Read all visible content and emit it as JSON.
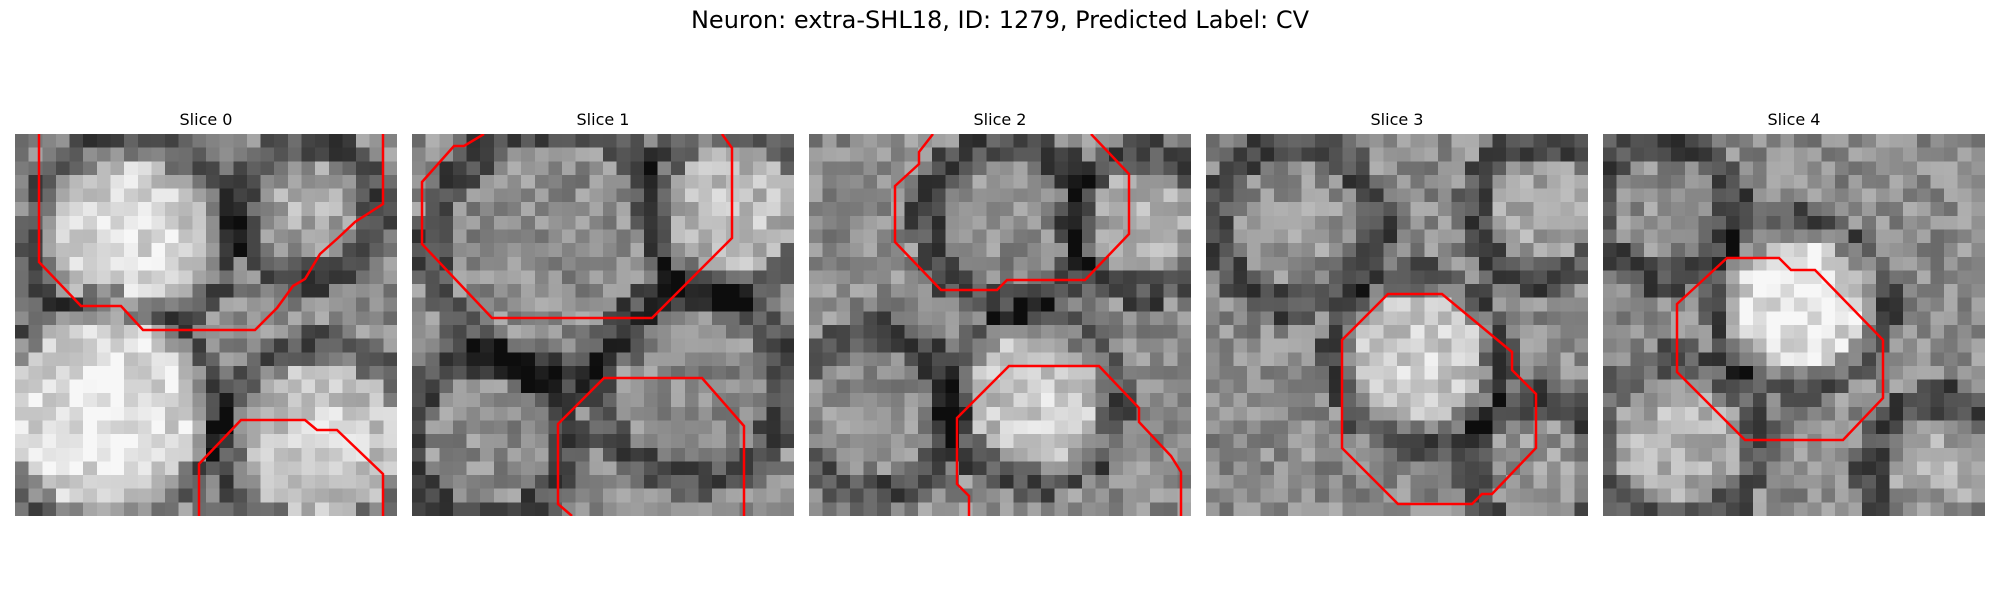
{
  "figure": {
    "title": "Neuron: extra-SHL18, ID: 1279, Predicted Label: CV",
    "colors": {
      "contour": "#ff0000",
      "background": "#ffffff"
    },
    "panels": [
      {
        "label": "Slice 0"
      },
      {
        "label": "Slice 1"
      },
      {
        "label": "Slice 2"
      },
      {
        "label": "Slice 3"
      },
      {
        "label": "Slice 4"
      }
    ]
  }
}
